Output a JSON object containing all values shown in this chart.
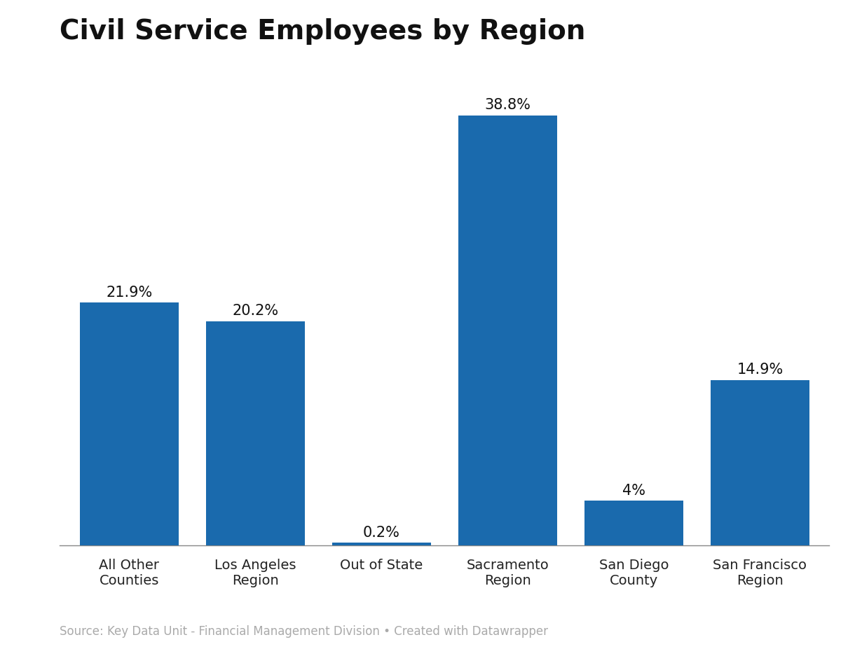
{
  "title": "Civil Service Employees by Region",
  "categories": [
    "All Other\nCounties",
    "Los Angeles\nRegion",
    "Out of State",
    "Sacramento\nRegion",
    "San Diego\nCounty",
    "San Francisco\nRegion"
  ],
  "values": [
    21.9,
    20.2,
    0.2,
    38.8,
    4.0,
    14.9
  ],
  "labels": [
    "21.9%",
    "20.2%",
    "0.2%",
    "38.8%",
    "4%",
    "14.9%"
  ],
  "bar_color": "#1a6aad",
  "background_color": "#ffffff",
  "title_fontsize": 28,
  "label_fontsize": 15,
  "tick_fontsize": 14,
  "source_text": "Source: Key Data Unit - Financial Management Division • Created with Datawrapper",
  "source_fontsize": 12,
  "ylim": [
    0,
    44
  ],
  "bar_width": 0.78
}
